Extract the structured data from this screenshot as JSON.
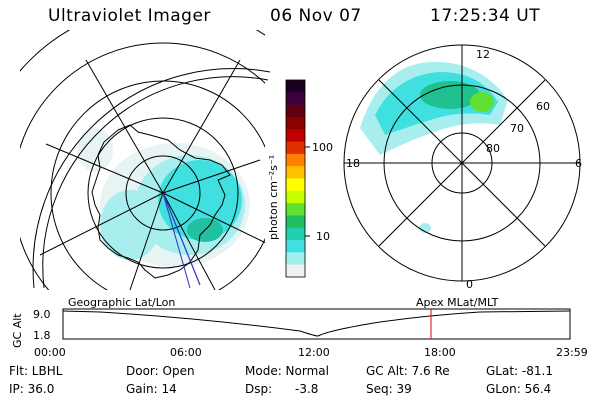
{
  "header": {
    "title": "Ultraviolet Imager",
    "date": "06 Nov 07",
    "time": "17:25:34 UT"
  },
  "colorbar": {
    "unit_label": "photon cm⁻²s⁻¹",
    "ticks": [
      "100",
      "10"
    ],
    "colors": [
      "#1a0020",
      "#3a0040",
      "#600010",
      "#8b0000",
      "#c00000",
      "#e03000",
      "#ff8000",
      "#ffc000",
      "#ffff00",
      "#c8ff00",
      "#60e030",
      "#20c060",
      "#20d0b0",
      "#40e0e0",
      "#a0f0f0",
      "#f0f0f0"
    ]
  },
  "left_map": {
    "label": "Geographic Lat/Lon"
  },
  "right_map": {
    "label": "Apex MLat/MLT",
    "mlt_labels": [
      "12",
      "18",
      "6",
      "0"
    ],
    "lat_labels": [
      "60",
      "70",
      "80"
    ]
  },
  "timeline": {
    "axis_label": "GC Alt",
    "y_ticks": [
      "9.0",
      "1.8"
    ],
    "x_ticks": [
      "00:00",
      "06:00",
      "12:00",
      "18:00",
      "23:59"
    ],
    "current_time_fraction": 0.7258
  },
  "info": {
    "filter": "Flt: LBHL",
    "door": "Door: Open",
    "mode": "Mode: Normal",
    "gc_alt": "GC Alt: 7.6 Re",
    "glat": "GLat: -81.1",
    "ip": "IP: 36.0",
    "gain": "Gain: 14",
    "dsp_label": "Dsp:",
    "dsp_value": "-3.8",
    "seq": "Seq: 39",
    "glon": "GLon: 56.4"
  }
}
